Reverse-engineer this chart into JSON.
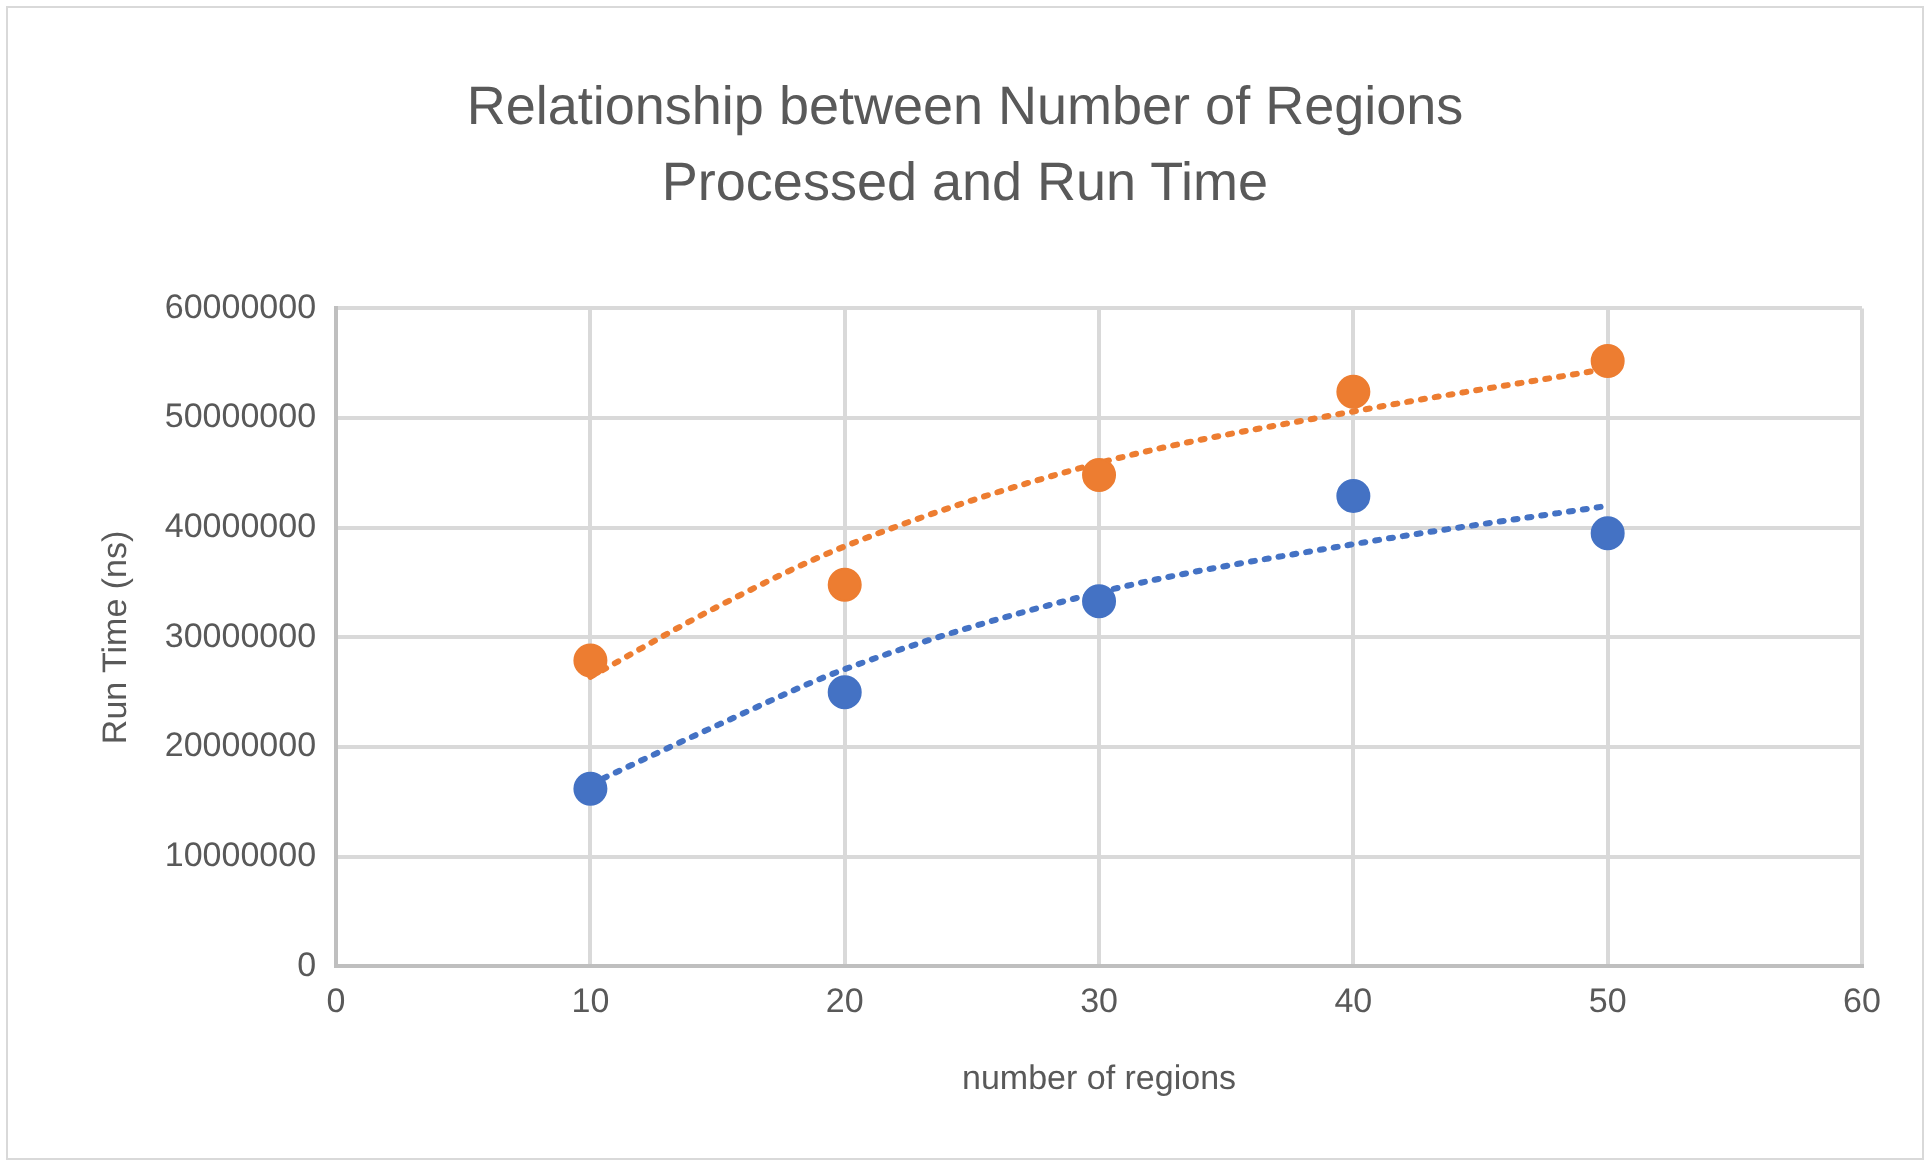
{
  "chart_data": {
    "type": "scatter",
    "title": "Relationship between Number of Regions Processed and Run Time",
    "xlabel": "number of regions",
    "ylabel": "Run Time (ns)",
    "xlim": [
      0,
      60
    ],
    "xticks": [
      0,
      10,
      20,
      30,
      40,
      50,
      60
    ],
    "ylim": [
      0,
      60000000
    ],
    "yticks": [
      0,
      10000000,
      20000000,
      30000000,
      40000000,
      50000000,
      60000000
    ],
    "grid": true,
    "legend": false,
    "series": [
      {
        "color": "#4472c4",
        "marker": "circle",
        "x": [
          10,
          20,
          30,
          40,
          50
        ],
        "values": [
          16200000,
          25000000,
          33300000,
          42900000,
          39500000
        ]
      },
      {
        "color": "#ed7d31",
        "marker": "circle",
        "x": [
          10,
          20,
          30,
          40,
          50
        ],
        "values": [
          27900000,
          34800000,
          44800000,
          52400000,
          55200000
        ]
      },
      {
        "type": "line",
        "color": "#4472c4",
        "line_style": "dotted",
        "marker": "none",
        "x": [
          10,
          15,
          20,
          30,
          40,
          50
        ],
        "values": [
          16600000,
          22000000,
          27100000,
          34100000,
          38500000,
          42000000
        ]
      },
      {
        "type": "line",
        "color": "#ed7d31",
        "line_style": "dotted",
        "marker": "none",
        "x": [
          10,
          15,
          20,
          30,
          40,
          50
        ],
        "values": [
          26400000,
          32800000,
          38300000,
          45900000,
          50600000,
          54500000
        ]
      }
    ]
  }
}
